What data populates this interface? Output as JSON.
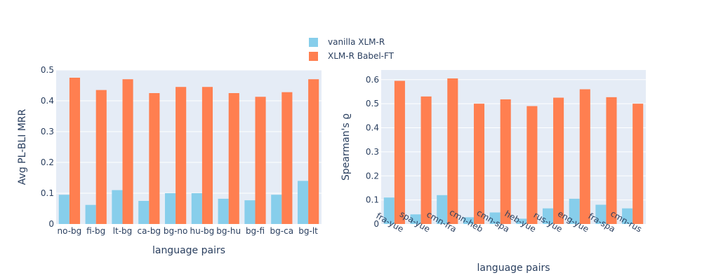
{
  "legend": {
    "items": [
      {
        "label": "vanilla XLM-R",
        "color": "#87ceeb"
      },
      {
        "label": "XLM-R Babel-FT",
        "color": "#ff7f50"
      }
    ]
  },
  "colors": {
    "plot_bg": "#e5ecf6",
    "grid": "#ffffff",
    "text": "#2a3f5f"
  },
  "chart_data": [
    {
      "type": "bar",
      "categories": [
        "no-bg",
        "fi-bg",
        "lt-bg",
        "ca-bg",
        "bg-no",
        "hu-bg",
        "bg-hu",
        "bg-fi",
        "bg-ca",
        "bg-lt"
      ],
      "series": [
        {
          "name": "vanilla XLM-R",
          "color": "#87ceeb",
          "values": [
            0.095,
            0.062,
            0.11,
            0.075,
            0.1,
            0.1,
            0.082,
            0.077,
            0.095,
            0.14
          ]
        },
        {
          "name": "XLM-R Babel-FT",
          "color": "#ff7f50",
          "values": [
            0.475,
            0.435,
            0.47,
            0.425,
            0.445,
            0.445,
            0.425,
            0.413,
            0.428,
            0.47
          ]
        }
      ],
      "xlabel": "language pairs",
      "ylabel": "Avg PL-BLI MRR",
      "ylim": [
        0,
        0.5
      ],
      "yticks": [
        0,
        0.1,
        0.2,
        0.3,
        0.4,
        0.5
      ],
      "ytick_labels": [
        "0",
        "0.1",
        "0.2",
        "0.3",
        "0.4",
        "0.5"
      ],
      "grid": true
    },
    {
      "type": "bar",
      "categories": [
        "fra-yue",
        "spa-yue",
        "cmn-fra",
        "cmn-heb",
        "cmn-spa",
        "heb-yue",
        "rus-yue",
        "eng-yue",
        "fra-spa",
        "cmn-rus"
      ],
      "series": [
        {
          "name": "vanilla XLM-R",
          "color": "#87ceeb",
          "values": [
            0.11,
            0.04,
            0.12,
            0.028,
            0.048,
            0.022,
            0.065,
            0.105,
            0.08,
            0.065
          ]
        },
        {
          "name": "XLM-R Babel-FT",
          "color": "#ff7f50",
          "values": [
            0.595,
            0.53,
            0.605,
            0.5,
            0.518,
            0.49,
            0.525,
            0.56,
            0.527,
            0.5
          ]
        }
      ],
      "xlabel": "language pairs",
      "ylabel": "Spearman's ϱ",
      "ylim": [
        0,
        0.64
      ],
      "yticks": [
        0,
        0.1,
        0.2,
        0.3,
        0.4,
        0.5,
        0.6
      ],
      "ytick_labels": [
        "0",
        "0.1",
        "0.2",
        "0.3",
        "0.4",
        "0.5",
        "0.6"
      ],
      "grid": true
    }
  ]
}
